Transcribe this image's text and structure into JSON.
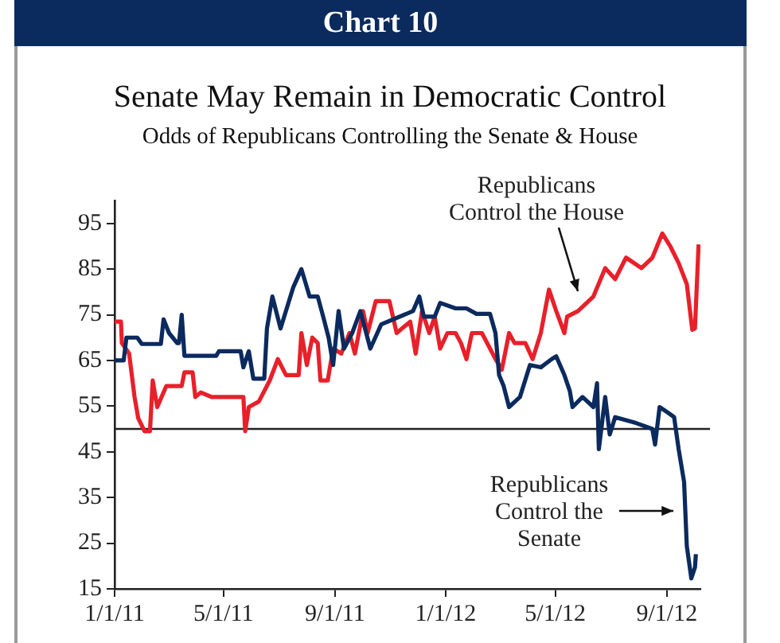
{
  "chart_data": {
    "type": "line",
    "title": "Senate May Remain in Democratic Control",
    "subtitle": "Odds of Republicans Controlling the Senate & House",
    "annotations": [
      "Chart 10",
      "Republicans\nControl the House",
      "Republicans\nControl the\nSenate"
    ],
    "xlim": [
      "2011-01-01",
      "2012-10-08"
    ],
    "xticks": [
      {
        "value": "2011-01-01",
        "label": "1/1/11"
      },
      {
        "value": "2011-05-01",
        "label": "5/1/11"
      },
      {
        "value": "2011-09-01",
        "label": "9/1/11"
      },
      {
        "value": "2012-01-01",
        "label": "1/1/12"
      },
      {
        "value": "2012-05-01",
        "label": "5/1/12"
      },
      {
        "value": "2012-09-01",
        "label": "9/1/12"
      }
    ],
    "ylim": [
      15,
      100
    ],
    "yticks": [
      15,
      25,
      35,
      45,
      55,
      65,
      75,
      85,
      95
    ],
    "grid": false,
    "legend": false,
    "marker": "none",
    "line_style": "solid",
    "ref_lines": [
      {
        "axis": "y",
        "value": 50,
        "color": "#222222"
      }
    ],
    "series": [
      {
        "color": "#0b2a5e",
        "x": [
          "2011-01-01",
          "2011-01-11",
          "2011-01-14",
          "2011-01-26",
          "2011-01-31",
          "2011-02-21",
          "2011-02-24",
          "2011-03-02",
          "2011-03-11",
          "2011-03-13",
          "2011-03-16",
          "2011-03-19",
          "2011-04-23",
          "2011-04-26",
          "2011-05-20",
          "2011-05-23",
          "2011-05-29",
          "2011-06-03",
          "2011-06-15",
          "2011-06-18",
          "2011-06-24",
          "2011-07-03",
          "2011-07-17",
          "2011-07-26",
          "2011-08-04",
          "2011-08-13",
          "2011-08-19",
          "2011-08-25",
          "2011-08-30",
          "2011-09-05",
          "2011-09-11",
          "2011-09-20",
          "2011-09-29",
          "2011-10-10",
          "2011-10-22",
          "2011-11-26",
          "2011-12-03",
          "2011-12-08",
          "2011-12-20",
          "2011-12-26",
          "2012-01-12",
          "2012-01-24",
          "2012-02-04",
          "2012-02-19",
          "2012-02-25",
          "2012-02-29",
          "2012-03-05",
          "2012-03-11",
          "2012-03-23",
          "2012-04-03",
          "2012-04-15",
          "2012-04-27",
          "2012-05-02",
          "2012-05-11",
          "2012-05-17",
          "2012-05-20",
          "2012-05-31",
          "2012-06-12",
          "2012-06-16",
          "2012-06-18",
          "2012-06-25",
          "2012-06-30",
          "2012-07-06",
          "2012-07-29",
          "2012-08-16",
          "2012-08-19",
          "2012-08-24",
          "2012-09-02",
          "2012-09-09",
          "2012-09-14",
          "2012-09-20",
          "2012-09-23",
          "2012-09-28",
          "2012-10-02",
          "2012-10-03"
        ],
        "values": [
          65,
          65,
          70,
          70,
          68.6,
          68.6,
          74,
          71,
          68.8,
          68.8,
          75,
          66,
          66,
          67,
          67,
          63.5,
          67,
          61,
          61,
          72,
          79,
          72,
          81,
          85,
          79,
          79,
          74.6,
          70,
          64,
          75.8,
          67.6,
          71,
          75.8,
          67.6,
          72.9,
          75.8,
          79,
          74.6,
          74.6,
          77.6,
          76.4,
          76.4,
          75.2,
          75.2,
          71,
          61.8,
          59.4,
          54.8,
          57,
          64,
          63.5,
          65.3,
          65.9,
          61.8,
          58.3,
          54.8,
          57,
          54.8,
          60,
          45.6,
          57,
          48.8,
          52.6,
          51.3,
          50,
          46.6,
          54.8,
          53.6,
          52.6,
          45.6,
          38.4,
          24.4,
          17.3,
          19.7,
          22.6
        ]
      },
      {
        "color": "#e8202a",
        "x": [
          "2011-01-01",
          "2011-01-08",
          "2011-01-09",
          "2011-01-17",
          "2011-01-23",
          "2011-01-27",
          "2011-02-03",
          "2011-02-09",
          "2011-02-12",
          "2011-02-17",
          "2011-02-27",
          "2011-03-16",
          "2011-03-19",
          "2011-03-28",
          "2011-03-31",
          "2011-04-06",
          "2011-04-18",
          "2011-05-23",
          "2011-05-25",
          "2011-05-29",
          "2011-06-09",
          "2011-06-21",
          "2011-06-30",
          "2011-07-09",
          "2011-07-23",
          "2011-07-26",
          "2011-08-01",
          "2011-08-07",
          "2011-08-13",
          "2011-08-16",
          "2011-08-24",
          "2011-08-30",
          "2011-09-08",
          "2011-09-17",
          "2011-09-23",
          "2011-10-02",
          "2011-10-07",
          "2011-10-16",
          "2011-10-31",
          "2011-11-08",
          "2011-11-23",
          "2011-11-29",
          "2011-12-06",
          "2011-12-14",
          "2011-12-20",
          "2011-12-26",
          "2012-01-03",
          "2012-01-12",
          "2012-01-18",
          "2012-01-24",
          "2012-01-30",
          "2012-02-10",
          "2012-02-19",
          "2012-02-25",
          "2012-03-03",
          "2012-03-11",
          "2012-03-17",
          "2012-03-29",
          "2012-04-06",
          "2012-04-15",
          "2012-04-24",
          "2012-05-02",
          "2012-05-11",
          "2012-05-14",
          "2012-05-26",
          "2012-06-12",
          "2012-06-25",
          "2012-07-06",
          "2012-07-18",
          "2012-08-04",
          "2012-08-16",
          "2012-08-27",
          "2012-09-05",
          "2012-09-14",
          "2012-09-23",
          "2012-09-29",
          "2012-10-02",
          "2012-10-06"
        ],
        "values": [
          73.5,
          73.5,
          68.8,
          66.5,
          57,
          52.4,
          49.5,
          49.5,
          60.6,
          54.8,
          59.4,
          59.4,
          62.4,
          62.4,
          57,
          58,
          57,
          57,
          49.5,
          54.8,
          56,
          60.6,
          65.3,
          61.8,
          61.8,
          71,
          64,
          70,
          68.8,
          60.6,
          60.6,
          67.6,
          66.5,
          71,
          66.5,
          75.8,
          71,
          78,
          78,
          71,
          73.5,
          66.5,
          75.8,
          71,
          74.6,
          67.6,
          71,
          71,
          68.8,
          65.3,
          71,
          71,
          67.6,
          65.3,
          63,
          71,
          68.8,
          68.8,
          65.3,
          71,
          80.5,
          75.8,
          71,
          74.6,
          75.8,
          79,
          85.2,
          82.8,
          87.5,
          85.2,
          87.5,
          92.8,
          89.9,
          86.3,
          81.7,
          71.7,
          72,
          90.4
        ]
      }
    ]
  }
}
